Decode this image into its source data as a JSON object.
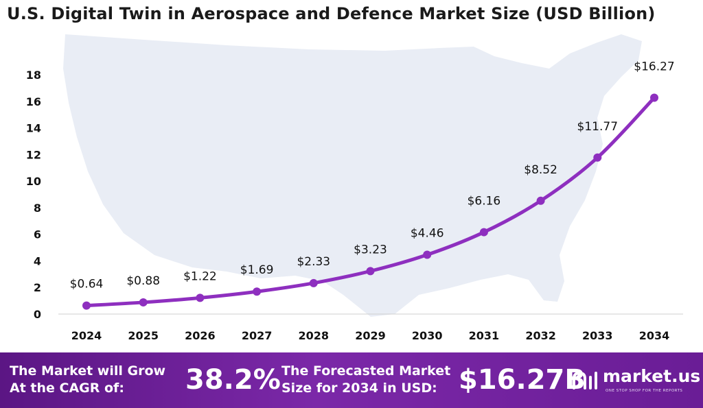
{
  "chart_data": {
    "type": "line",
    "title": "U.S. Digital Twin in Aerospace and Defence Market Size (USD Billion)",
    "categories": [
      "2024",
      "2025",
      "2026",
      "2027",
      "2028",
      "2029",
      "2030",
      "2031",
      "2032",
      "2033",
      "2034"
    ],
    "values": [
      0.64,
      0.88,
      1.22,
      1.69,
      2.33,
      3.23,
      4.46,
      6.16,
      8.52,
      11.77,
      16.27
    ],
    "data_labels": [
      "$0.64",
      "$0.88",
      "$1.22",
      "$1.69",
      "$2.33",
      "$3.23",
      "$4.46",
      "$6.16",
      "$8.52",
      "$11.77",
      "$16.27"
    ],
    "yticks": [
      "0",
      "2",
      "4",
      "6",
      "8",
      "10",
      "12",
      "14",
      "16",
      "18"
    ],
    "ylim": [
      0,
      18
    ],
    "xlabel": "",
    "ylabel": "",
    "grid": false,
    "line_color": "#8e2fbf",
    "background_map": "usa-map-silhouette"
  },
  "footer": {
    "cagr_label_line1": "The Market will Grow",
    "cagr_label_line2": "At the CAGR of:",
    "cagr_value": "38.2%",
    "forecast_label_line1": "The Forecasted Market",
    "forecast_label_line2": "Size for 2034 in USD:",
    "forecast_value": "$16.27B",
    "brand_name": "market.us",
    "brand_tagline": "ONE STOP SHOP FOR THE REPORTS",
    "brand_icon": "market-us-logo-icon"
  },
  "colors": {
    "footer_bg": "#6a1d96",
    "map_fill": "#e9edf5"
  }
}
